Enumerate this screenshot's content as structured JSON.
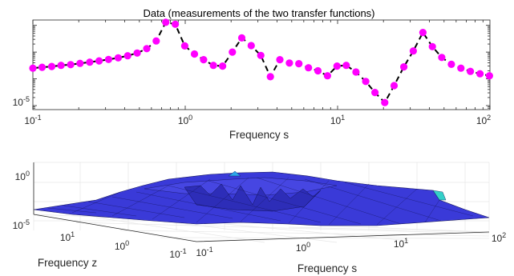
{
  "chart_data": [
    {
      "type": "line",
      "title": "Data (measurements of the two transfer functions)",
      "xlabel": "Frequency s",
      "ylabel": "",
      "xscale": "log",
      "yscale": "log",
      "xlim": [
        0.1,
        100
      ],
      "x_ticks": [
        {
          "value": 0.1,
          "base": "10",
          "exp": "-1"
        },
        {
          "value": 1,
          "base": "10",
          "exp": "0"
        },
        {
          "value": 10,
          "base": "10",
          "exp": "1"
        },
        {
          "value": 100,
          "base": "10",
          "exp": "2"
        }
      ],
      "y_ticks": [
        {
          "value": 1e-05,
          "base": "10",
          "exp": "-5"
        }
      ],
      "series": [
        {
          "marker": "circle",
          "marker_color": "#ff00ff",
          "line_color": "#000000",
          "line_style": "dashed",
          "points": [
            [
              0.1,
              0.00025
            ],
            [
              0.115,
              0.00027
            ],
            [
              0.133,
              0.00029
            ],
            [
              0.153,
              0.00032
            ],
            [
              0.177,
              0.00034
            ],
            [
              0.204,
              0.00038
            ],
            [
              0.236,
              0.00042
            ],
            [
              0.272,
              0.00047
            ],
            [
              0.314,
              0.00053
            ],
            [
              0.363,
              0.00061
            ],
            [
              0.419,
              0.00073
            ],
            [
              0.484,
              0.00092
            ],
            [
              0.559,
              0.00135
            ],
            [
              0.645,
              0.0026
            ],
            [
              0.745,
              0.013
            ],
            [
              0.86,
              0.011
            ],
            [
              0.993,
              0.0017
            ],
            [
              1.15,
              0.00085
            ],
            [
              1.32,
              0.00052
            ],
            [
              1.53,
              0.00032
            ],
            [
              1.76,
              0.0003
            ],
            [
              2.04,
              0.001
            ],
            [
              2.35,
              0.0034
            ],
            [
              2.71,
              0.00175
            ],
            [
              3.13,
              0.00075
            ],
            [
              3.62,
              0.00012
            ],
            [
              4.18,
              0.00052
            ],
            [
              4.83,
              0.00039
            ],
            [
              5.57,
              0.00037
            ],
            [
              6.44,
              0.00026
            ],
            [
              7.43,
              0.0002
            ],
            [
              8.58,
              0.00013
            ],
            [
              9.91,
              0.0003
            ],
            [
              11.4,
              0.00032
            ],
            [
              13.2,
              0.00018
            ],
            [
              15.3,
              8e-05
            ],
            [
              17.6,
              3.1e-05
            ],
            [
              20.4,
              1.3e-05
            ],
            [
              23.5,
              5.6e-05
            ],
            [
              27.2,
              0.00028
            ],
            [
              31.4,
              0.0011
            ],
            [
              36.3,
              0.0054
            ],
            [
              41.9,
              0.0016
            ],
            [
              48.3,
              0.00063
            ],
            [
              55.8,
              0.00035
            ],
            [
              64.5,
              0.00025
            ],
            [
              74.4,
              0.00019
            ],
            [
              86.0,
              0.000155
            ],
            [
              99.3,
              0.00013
            ]
          ]
        }
      ]
    },
    {
      "type": "surface",
      "title": "",
      "xlabel": "Frequency s",
      "ylabel": "Frequency z",
      "zscale": "log",
      "surface_color": "#3a3ad8",
      "highlight_color": "#2aa6e8",
      "x_ticks": [
        {
          "value": 0.1,
          "base": "10",
          "exp": "-1"
        },
        {
          "value": 1,
          "base": "10",
          "exp": "0"
        },
        {
          "value": 10,
          "base": "10",
          "exp": "1"
        },
        {
          "value": 100,
          "base": "10",
          "exp": "2"
        }
      ],
      "y_ticks": [
        {
          "value": 10,
          "base": "10",
          "exp": "1"
        },
        {
          "value": 1,
          "base": "10",
          "exp": "0"
        },
        {
          "value": 0.1,
          "base": "10",
          "exp": "-1"
        }
      ],
      "z_ticks": [
        {
          "value": 1,
          "base": "10",
          "exp": "0"
        },
        {
          "value": 1e-05,
          "base": "10",
          "exp": "-5"
        }
      ]
    }
  ]
}
